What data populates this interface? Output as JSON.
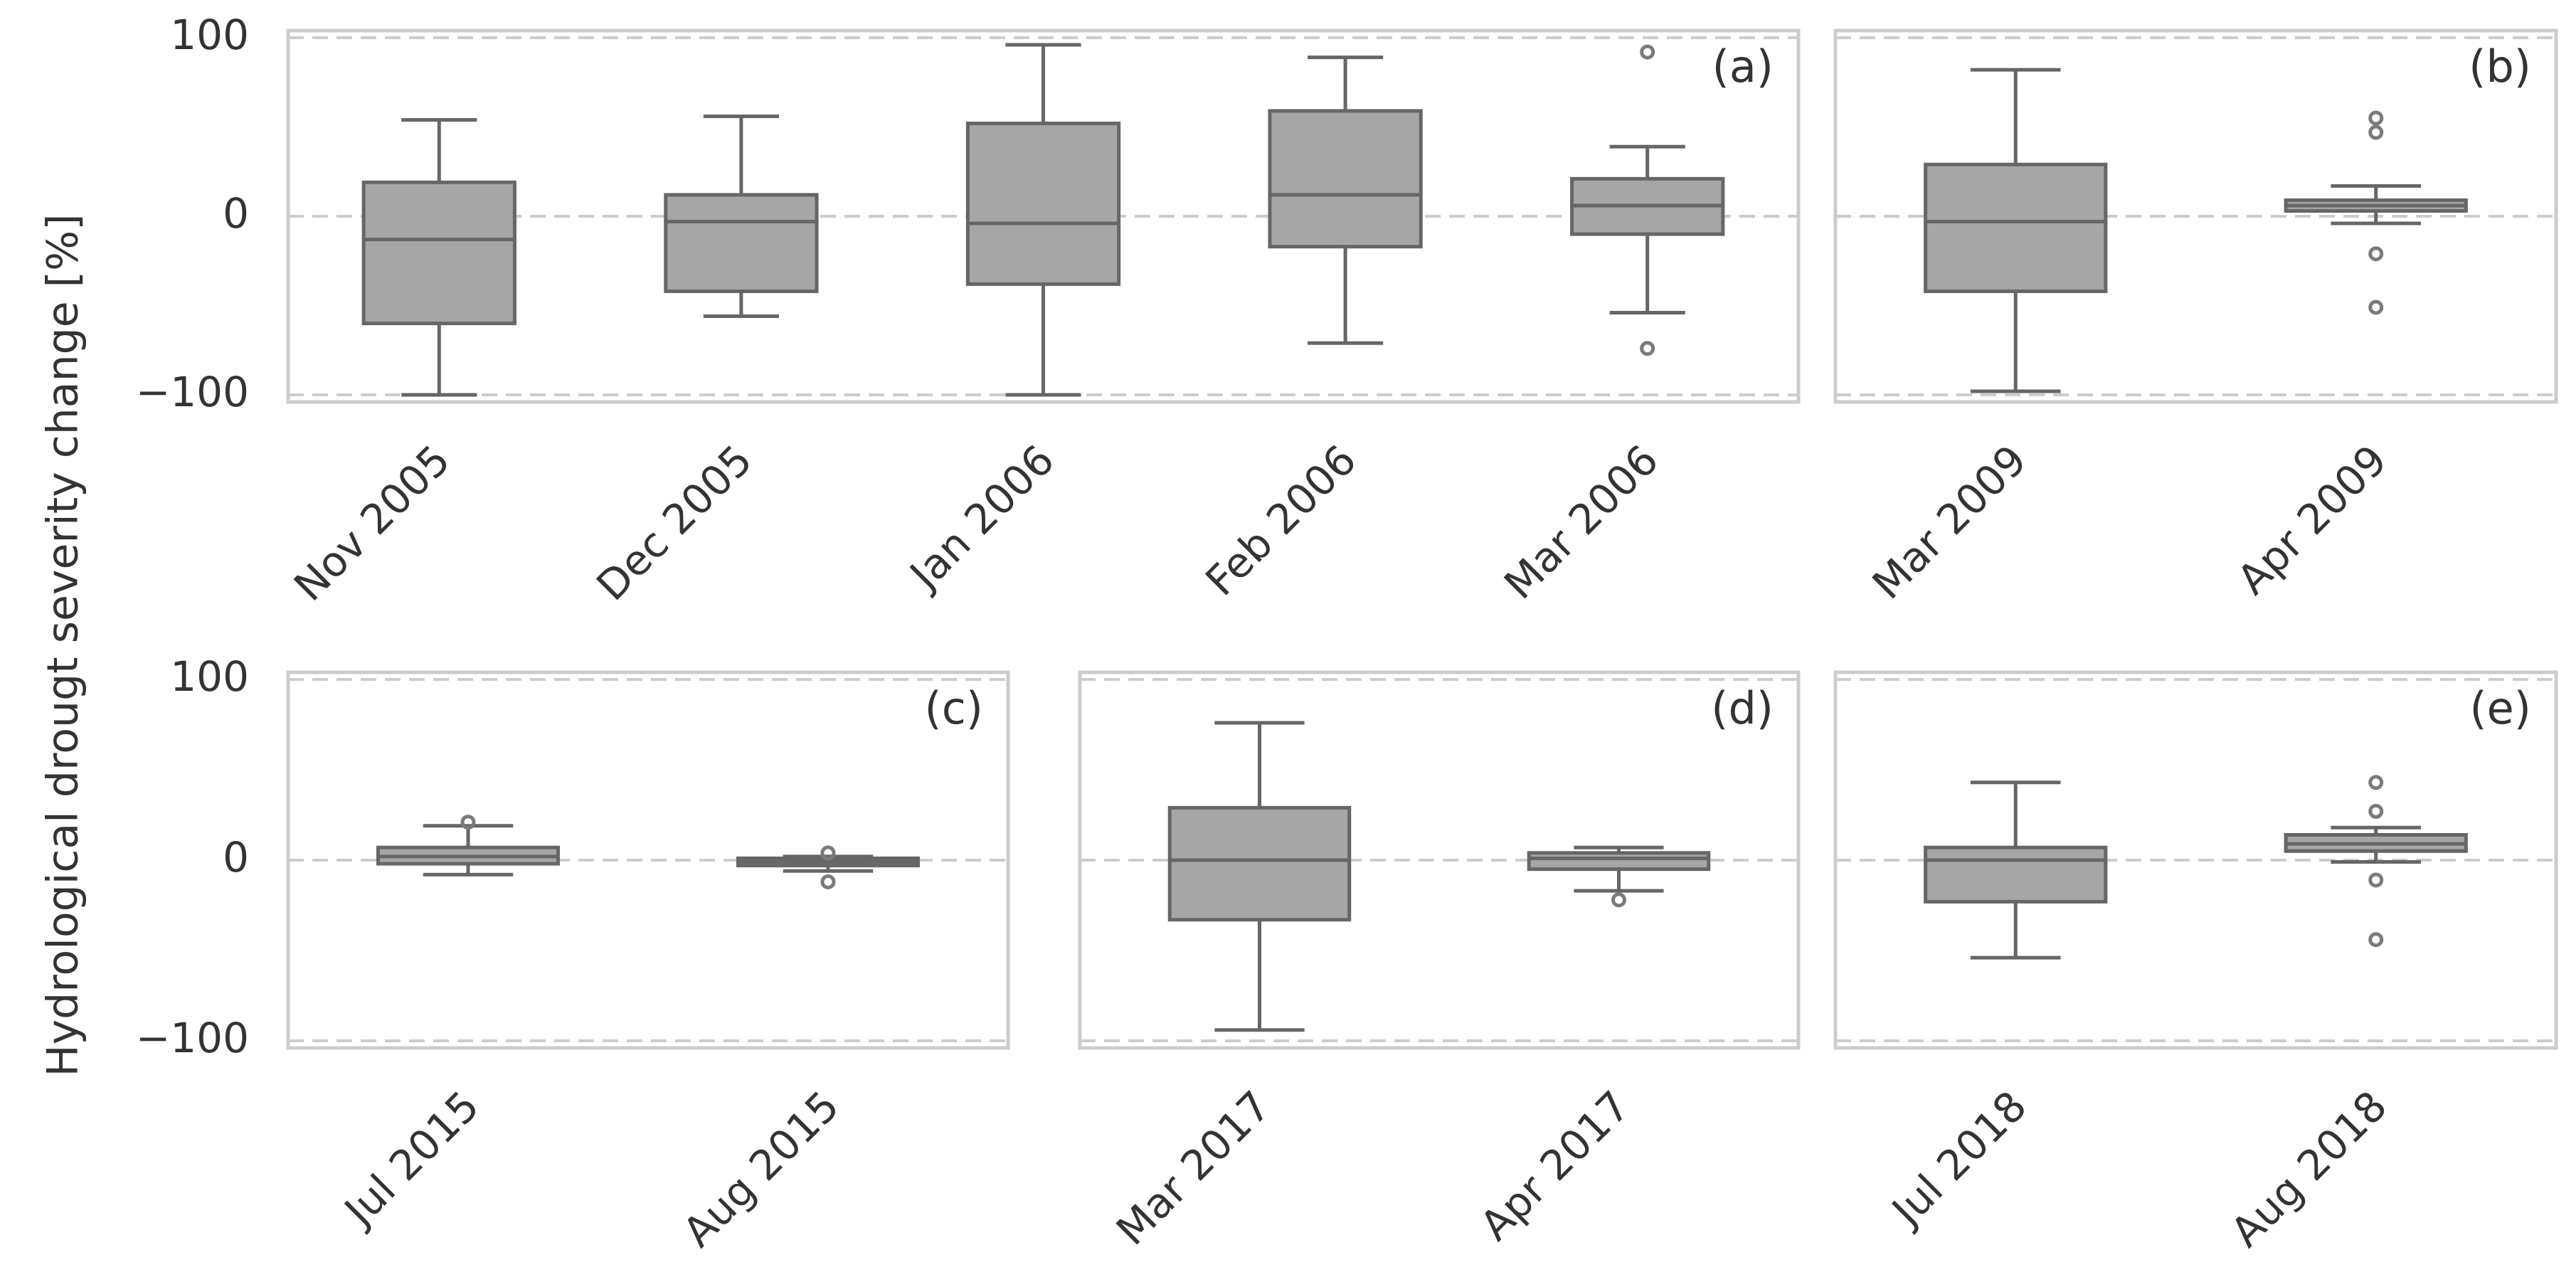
{
  "chart_data": {
    "type": "box",
    "ylabel": "Hydrological drougt severity change [%]",
    "ylim": [
      -100,
      100
    ],
    "yticks": [
      100,
      0,
      -100
    ],
    "ytick_labels": [
      "100",
      "0",
      "−100"
    ],
    "box_color": "#a6a6a6",
    "line_color": "#666666",
    "frame_color": "#cccccc",
    "panels": [
      {
        "id": "a",
        "label": "(a)",
        "categories": [
          "Nov 2005",
          "Dec 2005",
          "Jan 2006",
          "Feb 2006",
          "Mar 2006"
        ],
        "boxes": [
          {
            "q1": -60,
            "median": -13,
            "q3": 19,
            "whislo": -100,
            "whishi": 54,
            "fliers": []
          },
          {
            "q1": -42,
            "median": -3,
            "q3": 12,
            "whislo": -56,
            "whishi": 56,
            "fliers": []
          },
          {
            "q1": -38,
            "median": -4,
            "q3": 52,
            "whislo": -100,
            "whishi": 96,
            "fliers": []
          },
          {
            "q1": -17,
            "median": 12,
            "q3": 59,
            "whislo": -71,
            "whishi": 89,
            "fliers": []
          },
          {
            "q1": -10,
            "median": 6,
            "q3": 21,
            "whislo": -54,
            "whishi": 39,
            "fliers": [
              92,
              -74
            ]
          }
        ]
      },
      {
        "id": "b",
        "label": "(b)",
        "categories": [
          "Mar 2009",
          "Apr 2009"
        ],
        "boxes": [
          {
            "q1": -42,
            "median": -3,
            "q3": 29,
            "whislo": -98,
            "whishi": 82,
            "fliers": []
          },
          {
            "q1": 3,
            "median": 6,
            "q3": 9,
            "whislo": -4,
            "whishi": 17,
            "fliers": [
              55,
              47,
              -21,
              -51
            ]
          }
        ]
      },
      {
        "id": "c",
        "label": "(c)",
        "categories": [
          "Jul 2015",
          "Aug 2015"
        ],
        "boxes": [
          {
            "q1": -2,
            "median": 2,
            "q3": 7,
            "whislo": -8,
            "whishi": 19,
            "fliers": [
              21
            ]
          },
          {
            "q1": -3,
            "median": -1,
            "q3": 1,
            "whislo": -6,
            "whishi": 2,
            "fliers": [
              4,
              -12
            ]
          }
        ]
      },
      {
        "id": "d",
        "label": "(d)",
        "categories": [
          "Mar 2017",
          "Apr 2017"
        ],
        "boxes": [
          {
            "q1": -33,
            "median": 0,
            "q3": 29,
            "whislo": -94,
            "whishi": 76,
            "fliers": []
          },
          {
            "q1": -5,
            "median": 1,
            "q3": 4,
            "whislo": -17,
            "whishi": 7,
            "fliers": [
              -22
            ]
          }
        ]
      },
      {
        "id": "e",
        "label": "(e)",
        "categories": [
          "Jul 2018",
          "Aug 2018"
        ],
        "boxes": [
          {
            "q1": -23,
            "median": 0,
            "q3": 7,
            "whislo": -54,
            "whishi": 43,
            "fliers": []
          },
          {
            "q1": 5,
            "median": 9,
            "q3": 14,
            "whislo": -1,
            "whishi": 18,
            "fliers": [
              43,
              27,
              -11,
              -44
            ]
          }
        ]
      }
    ]
  }
}
